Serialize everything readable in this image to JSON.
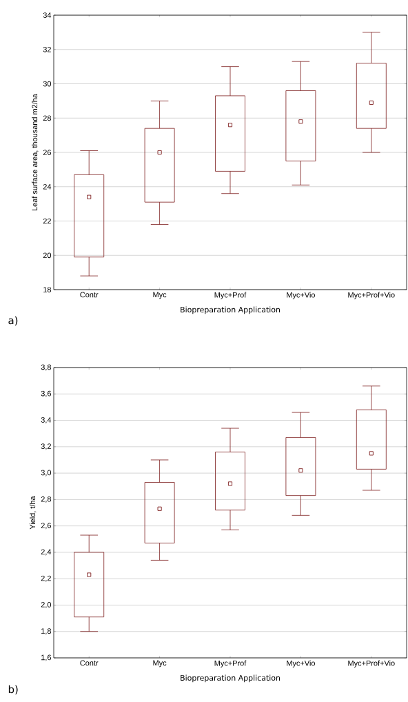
{
  "chart_data": [
    {
      "type": "box",
      "categories": [
        "Contr",
        "Myc",
        "Myc+Prof",
        "Myc+Vio",
        "Myc+Prof+Vio"
      ],
      "xlabel": "Biopreparation Application",
      "ylabel": "Leaf surface area, thousand m2/ha",
      "annotations": [
        "a)"
      ],
      "color": "#7b1a1a",
      "grid": "y",
      "marker": "square",
      "boxes": [
        {
          "low": 18.8,
          "q1": 19.9,
          "median": 23.4,
          "q3": 24.7,
          "high": 26.1
        },
        {
          "low": 21.8,
          "q1": 23.1,
          "median": 26.0,
          "q3": 27.4,
          "high": 29.0
        },
        {
          "low": 23.6,
          "q1": 24.9,
          "median": 27.6,
          "q3": 29.3,
          "high": 31.0
        },
        {
          "low": 24.1,
          "q1": 25.5,
          "median": 27.8,
          "q3": 29.6,
          "high": 31.3
        },
        {
          "low": 26.0,
          "q1": 27.4,
          "median": 28.9,
          "q3": 31.2,
          "high": 33.0
        }
      ],
      "ylim": [
        18,
        34
      ],
      "yticks": [
        18,
        20,
        22,
        24,
        26,
        28,
        30,
        32,
        34
      ]
    },
    {
      "type": "box",
      "categories": [
        "Contr",
        "Myc",
        "Myc+Prof",
        "Myc+Vio",
        "Myc+Prof+Vio"
      ],
      "xlabel": "Biopreparation Application",
      "ylabel": "Yield, t/ha",
      "annotations": [
        "b)"
      ],
      "color": "#7b1a1a",
      "grid": "y",
      "marker": "square",
      "boxes": [
        {
          "low": 1.8,
          "q1": 1.91,
          "median": 2.23,
          "q3": 2.4,
          "high": 2.53
        },
        {
          "low": 2.34,
          "q1": 2.47,
          "median": 2.73,
          "q3": 2.93,
          "high": 3.1
        },
        {
          "low": 2.57,
          "q1": 2.72,
          "median": 2.92,
          "q3": 3.16,
          "high": 3.34
        },
        {
          "low": 2.68,
          "q1": 2.83,
          "median": 3.02,
          "q3": 3.27,
          "high": 3.46
        },
        {
          "low": 2.87,
          "q1": 3.03,
          "median": 3.15,
          "q3": 3.48,
          "high": 3.66
        }
      ],
      "ylim": [
        1.6,
        3.8
      ],
      "yticks": [
        {
          "value": 1.6,
          "label": "1,6"
        },
        {
          "value": 1.8,
          "label": "1,8"
        },
        {
          "value": 2.0,
          "label": "2,0"
        },
        {
          "value": 2.2,
          "label": "2,2"
        },
        {
          "value": 2.4,
          "label": "2,4"
        },
        {
          "value": 2.6,
          "label": "2,6"
        },
        {
          "value": 2.8,
          "label": "2,8"
        },
        {
          "value": 3.0,
          "label": "3,0"
        },
        {
          "value": 3.2,
          "label": "3,2"
        },
        {
          "value": 3.4,
          "label": "3,4"
        },
        {
          "value": 3.6,
          "label": "3,6"
        },
        {
          "value": 3.8,
          "label": "3,8"
        }
      ]
    }
  ]
}
